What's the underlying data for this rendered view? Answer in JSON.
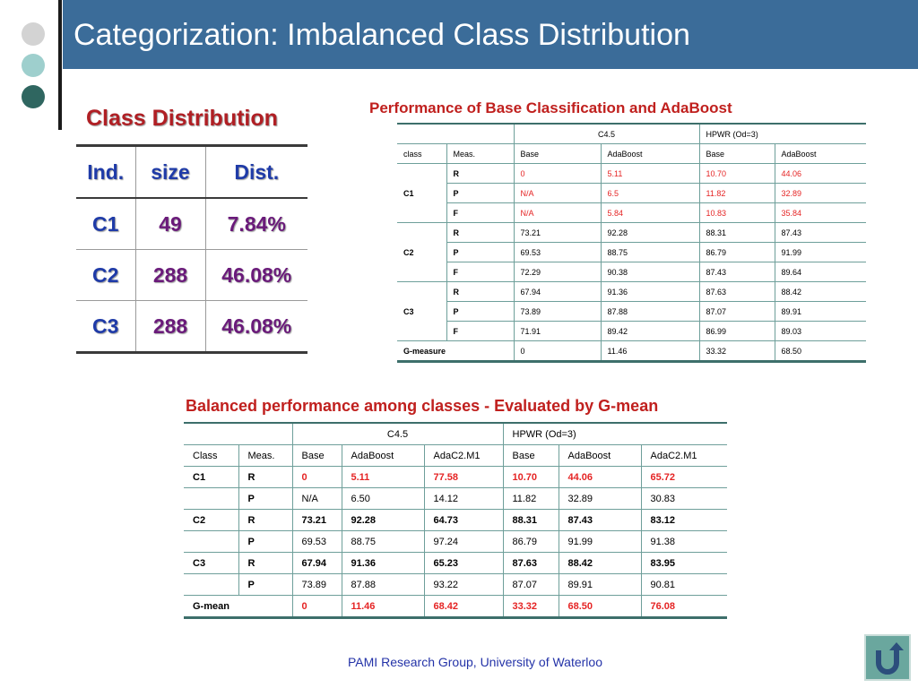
{
  "slide": {
    "title": "Categorization: Imbalanced Class Distribution",
    "footer": "PAMI Research Group, University of Waterloo",
    "return_icon": "return-arrow-icon"
  },
  "class_distribution": {
    "heading": "Class Distribution",
    "headers": [
      "Ind.",
      "size",
      "Dist."
    ],
    "rows": [
      [
        "C1",
        "49",
        "7.84%"
      ],
      [
        "C2",
        "288",
        "46.08%"
      ],
      [
        "C3",
        "288",
        "46.08%"
      ]
    ]
  },
  "performance_table": {
    "caption": "Performance of Base Classification and AdaBoost",
    "group_headers": [
      "C4.5",
      "HPWR (Od=3)"
    ],
    "headers": [
      "class",
      "Meas.",
      "Base",
      "AdaBoost",
      "Base",
      "AdaBoost"
    ],
    "rows": [
      {
        "cls": "C1",
        "meas": "R",
        "vals": [
          "0",
          "5.11",
          "10.70",
          "44.06"
        ]
      },
      {
        "cls": "",
        "meas": "P",
        "vals": [
          "N/A",
          "6.5",
          "11.82",
          "32.89"
        ]
      },
      {
        "cls": "",
        "meas": "F",
        "vals": [
          "N/A",
          "5.84",
          "10.83",
          "35.84"
        ]
      },
      {
        "cls": "C2",
        "meas": "R",
        "vals": [
          "73.21",
          "92.28",
          "88.31",
          "87.43"
        ]
      },
      {
        "cls": "",
        "meas": "P",
        "vals": [
          "69.53",
          "88.75",
          "86.79",
          "91.99"
        ]
      },
      {
        "cls": "",
        "meas": "F",
        "vals": [
          "72.29",
          "90.38",
          "87.43",
          "89.64"
        ]
      },
      {
        "cls": "C3",
        "meas": "R",
        "vals": [
          "67.94",
          "91.36",
          "87.63",
          "88.42"
        ]
      },
      {
        "cls": "",
        "meas": "P",
        "vals": [
          "73.89",
          "87.88",
          "87.07",
          "89.91"
        ]
      },
      {
        "cls": "",
        "meas": "F",
        "vals": [
          "71.91",
          "89.42",
          "86.99",
          "89.03"
        ]
      }
    ],
    "footer_row": {
      "label": "G-measure",
      "vals": [
        "0",
        "11.46",
        "33.32",
        "68.50"
      ]
    }
  },
  "gmean_table": {
    "caption": "Balanced performance among classes - Evaluated by G-mean",
    "group_headers": [
      "C4.5",
      "HPWR (Od=3)"
    ],
    "headers": [
      "Class",
      "Meas.",
      "Base",
      "AdaBoost",
      "AdaC2.M1",
      "Base",
      "AdaBoost",
      "AdaC2.M1"
    ],
    "rows": [
      {
        "cls": "C1",
        "meas": "R",
        "vals": [
          "0",
          "5.11",
          "77.58",
          "10.70",
          "44.06",
          "65.72"
        ]
      },
      {
        "cls": "",
        "meas": "P",
        "vals": [
          "N/A",
          "6.50",
          "14.12",
          "11.82",
          "32.89",
          "30.83"
        ]
      },
      {
        "cls": "C2",
        "meas": "R",
        "vals": [
          "73.21",
          "92.28",
          "64.73",
          "88.31",
          "87.43",
          "83.12"
        ]
      },
      {
        "cls": "",
        "meas": "P",
        "vals": [
          "69.53",
          "88.75",
          "97.24",
          "86.79",
          "91.99",
          "91.38"
        ]
      },
      {
        "cls": "C3",
        "meas": "R",
        "vals": [
          "67.94",
          "91.36",
          "65.23",
          "87.63",
          "88.42",
          "83.95"
        ]
      },
      {
        "cls": "",
        "meas": "P",
        "vals": [
          "73.89",
          "87.88",
          "93.22",
          "87.07",
          "89.91",
          "90.81"
        ]
      }
    ],
    "footer_row": {
      "label": "G-mean",
      "vals": [
        "0",
        "11.46",
        "68.42",
        "33.32",
        "68.50",
        "76.08"
      ]
    }
  },
  "colors": {
    "header_band": "#3b6c99",
    "caption_red": "#c0201e",
    "highlight_red": "#e52424",
    "table_rule": "#3d6f6b"
  }
}
